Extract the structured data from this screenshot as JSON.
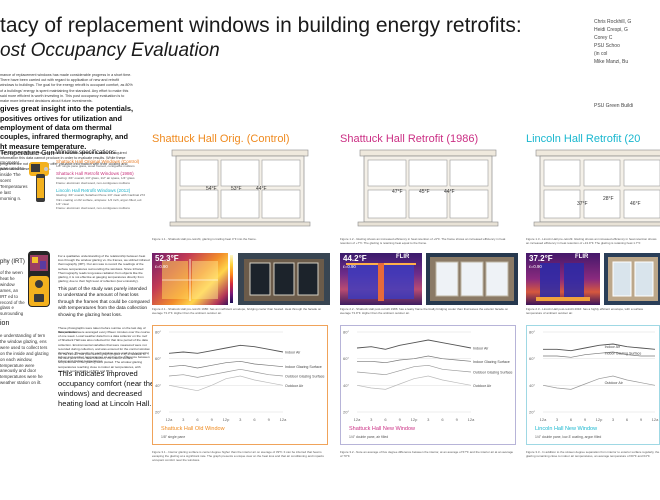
{
  "poster": {
    "title_line1": "tacy of replacement windows in building energy retrofits:",
    "title_line2": "ost Occupancy Evaluation",
    "authors": [
      "Chris Rockhill, G",
      "Heidi Crespi, G",
      "Corey C",
      "PSU Schoo",
      "(in col",
      "Mike Manzi, Bu"
    ],
    "affiliation": "PSU Green Buildi",
    "abstract": {
      "text1": "mance of replacement windows has made considerable progress in a short time. There have been carried out with regard to application of new and retrofit windows to buildings. The goal for the energy retrofit is occupant comfort, as 80% of a buildings' energy is spent maintaining the standard. Any effort to make this said more efficient is worth investing in. This post occupancy evaluation is to make more informed decisions about future investments.",
      "bold": "gives great insight into the potentials, positives ortives for utilization and employment of data om thermal couples, infrared thermography, and ht measure temperature.",
      "text2": "The paper highlighting the potentials of methods attentive to areas of required information this data cannot produce in order to evaluate results. While these programs are not perfect, they offer valuable information with their cooling and potential unforeseen problems."
    },
    "temp_gun": {
      "heading": "Temperature Gun",
      "text": "rmometer was used to inside The scent Temperatures e last morning n."
    },
    "irt": {
      "label": "phy (IRT)",
      "text": "of the ween heat he window ames, an IRT ed to record of the glass e surrounding"
    },
    "section3": {
      "heading": "ion",
      "text": "e understanding of tern the window glazing, ens were used to collect ters on the inside and glazing on each window, temperature were aneously and door temperatures were he weather station on ilt."
    }
  },
  "specs": {
    "heading": "Window specifications:",
    "items": [
      {
        "title": "Shattuck Hall Original Windows (Control)",
        "lines": [
          "1/8\" single pane glass, wood framed, contiguous mullions"
        ]
      },
      {
        "title": "Shattuck Hall Retrofit Windows (1986)",
        "lines": [
          "Glazing: 3/4\" overall, 1/4\" glass, 1/2\" air space, 1/4\" glass",
          "Frame: aluminum clad wood, non-contiguous mullions"
        ]
      },
      {
        "title": "Lincoln Hall Retrofit Windows (2012)",
        "lines": [
          "Glazing: 3/4\" overall, Solarban Pione 1/4\" clear with Cardinal 272 Vitro coating on #2 surface, airspace: 1/2 inch, argon filled, ext: 1/4\" clear",
          "Frame: aluminum clad wood, non-contiguous mullions"
        ]
      }
    ]
  },
  "infrared_note": "For a qualitative understanding of the relationship between heat loss through the window glazing vs. the frames, we utilized infrared thermography (IRT). Our aim was to record the readings of the surface temperatures surrounding the windows. Since Infrared Thermography reads long-wave radiation from objects like the glazing, it is not effective at gauging temperatures directly from glazing; due to their high level of reflection (low emissivity).",
  "infrared_note2": "This part of the study was purely intended to understand the amount of heat loss through the frames that could be compared with temperatures from the data collection showing the glazing heat loss.",
  "infrared_note3": "These photographs were taken before sunrise on the last day of data collection.",
  "data_note": "Temperatures were averaged every fifteen minutes over the course of one week. Local weather data from a data collector on the roof of Shattuck Hall was also collected for that time period of the data collection. Environmental variables that were measured were not recorded during collection, and was ensured for the control window throughout. The results for each window were analyzed comparing indoor and outdoor temperatures as well as the difference between indoor and glazing temperatures.",
  "data_note2": "On the Lincoln Hall post-retrofit graph (Figure 1.3), in addition to the dew point in the data collection, the interior surface temperatures of the glazing were plotted. The window glazing temperatures reaching close to indoor air temperatures, with average temperatures of 60°F and 64°F.",
  "conclusion": "This indicates improved occupancy comfort (near the windows) and decreased heating load at Lincoln Hall.",
  "columns": [
    {
      "title": "Shattuck Hall Orig. (Control)",
      "temps": [
        "54°F",
        "53°F",
        "44°F"
      ],
      "caption1": "Figure 1.1 - Shattuck Hall pre-retrofit, glazing is trailing heat 4°F into the frame.",
      "thermal_temp": "52.3°F",
      "thermal_eps": "ε=0.90",
      "flir": "FLIR",
      "caption2": "Figure 2.1 - Shattuck Hall pre-retrofit 1986: has an inefficient envelope, bridging cooler than heated. Heat through the facade on average 73.3°F. Higher than the ambient outdoor air.",
      "chart_name": "Shattuck Hall Old Window",
      "chart_sub": "1/8\" single pane",
      "caption3": "Figure 3.1 - Interior glazing surface is center degree higher than the interior air on average of 39°F. It can be inferred that heat is escaping the glazing at a significant rate. The graph presents a unique view on the heat loss and that air conditioning and impacts occupant comfort near the windows."
    },
    {
      "title": "Shattuck Hall Retrofit (1986)",
      "temps": [
        "47°F",
        "45°F",
        "44°F"
      ],
      "caption1": "Figure 1.2 - Glazing shows an increased efficiency in heat retention of +9°F. The frame shows an increased efficiency in heat retention of +7°F. The glazing is retaining heat equal to the frame.",
      "thermal_temp": "44.2°F",
      "thermal_eps": "ε=0.90",
      "flir": "FLIR",
      "caption2": "Figure 2.2 - Shattuck Hall post-retrofit 1986: has a leaky frame thermally bridging cooler than that leaves the exterior facade on average 73.9°F. Higher than the ambient outdoor air.",
      "chart_name": "Shattuck Hall New Window",
      "chart_sub": "1/4\" double pane, air filled",
      "caption3": "Figure 3.2 - Note an average of five degree difference between the interior, at an average of 57°F and the interior air at an average of 70°F."
    },
    {
      "title": "Lincoln Hall Retrofit (20",
      "temps": [
        "37°F",
        "28°F",
        "46°F"
      ],
      "caption1": "Figure 1.3 - Lincoln Hall pre-retrofit: Glazing shows an increased efficiency in heat retention shows an increased efficiency in heat retention of +13.9°F. The glazing is retaining heat 1.7°F",
      "thermal_temp": "37.2°F",
      "thermal_eps": "ε=0.90",
      "flir": "FLIR",
      "caption2": "Figure 2.3 - Lincoln Hall post-retrofit 2016: has a highly efficient envelope, with a surface temperature of ambient outdoor air.",
      "chart_name": "Lincoln Hall New Window",
      "chart_sub": "1/4\" double pane, low-E coating, argon filled",
      "caption3": "Figure 3.3 - In addition to the sixteen degree separation from interior to exterior surface regularly, the glazing remaining close to indoor air temperatures, an average temperature of 60°F and 64°F."
    }
  ],
  "chart_data": [
    {
      "type": "line",
      "title": "Shattuck Hall Old Window",
      "x": [
        "12a",
        "3",
        "6",
        "9",
        "12p",
        "3",
        "6",
        "9",
        "12a"
      ],
      "y_ticks": [
        "80°",
        "60°",
        "40°",
        "20°"
      ],
      "ylim": [
        20,
        80
      ],
      "series": [
        {
          "name": "Indoor Air",
          "values": [
            64,
            65,
            64,
            66,
            68,
            70,
            69,
            67,
            65
          ]
        },
        {
          "name": "Indoor Glazing Surface",
          "values": [
            54,
            55,
            53,
            55,
            57,
            58,
            56,
            55,
            54
          ]
        },
        {
          "name": "Outdoor Glazing Surface",
          "values": [
            47,
            48,
            46,
            48,
            50,
            52,
            50,
            48,
            47
          ]
        },
        {
          "name": "Outdoor Air",
          "values": [
            40,
            38,
            36,
            40,
            45,
            47,
            44,
            42,
            40
          ]
        }
      ]
    },
    {
      "type": "line",
      "title": "Shattuck Hall New Window",
      "x": [
        "12a",
        "3",
        "6",
        "9",
        "12p",
        "3",
        "6",
        "9",
        "12a"
      ],
      "y_ticks": [
        "80°",
        "60°",
        "40°",
        "20°"
      ],
      "ylim": [
        20,
        80
      ],
      "series": [
        {
          "name": "Indoor Air",
          "values": [
            68,
            69,
            67,
            70,
            72,
            74,
            72,
            70,
            68
          ]
        },
        {
          "name": "Indoor Glazing Surface",
          "values": [
            58,
            58,
            57,
            59,
            60,
            62,
            60,
            59,
            58
          ]
        },
        {
          "name": "Outdoor Glazing Surface",
          "values": [
            50,
            49,
            48,
            51,
            54,
            55,
            52,
            51,
            50
          ]
        },
        {
          "name": "Outdoor Air",
          "values": [
            40,
            38,
            37,
            41,
            45,
            47,
            44,
            42,
            40
          ]
        }
      ]
    },
    {
      "type": "line",
      "title": "Lincoln Hall New Window",
      "x": [
        "12a",
        "3",
        "6",
        "9",
        "12p",
        "3",
        "6",
        "9",
        "12a"
      ],
      "y_ticks": [
        "80°",
        "60°",
        "40°",
        "20°"
      ],
      "ylim": [
        20,
        80
      ],
      "series": [
        {
          "name": "Indoor Air",
          "values": [
            67,
            67,
            66,
            68,
            70,
            71,
            69,
            68,
            67
          ]
        },
        {
          "name": "Indoor Glazing Surface",
          "values": [
            62,
            62,
            61,
            63,
            64,
            65,
            63,
            62,
            62
          ]
        },
        {
          "name": "Outdoor Air",
          "values": [
            40,
            38,
            37,
            41,
            45,
            47,
            44,
            42,
            40
          ]
        }
      ]
    }
  ],
  "colors": {
    "orange": "#ef8a1f",
    "pink": "#cb2f84",
    "cyan": "#19b7cf"
  }
}
